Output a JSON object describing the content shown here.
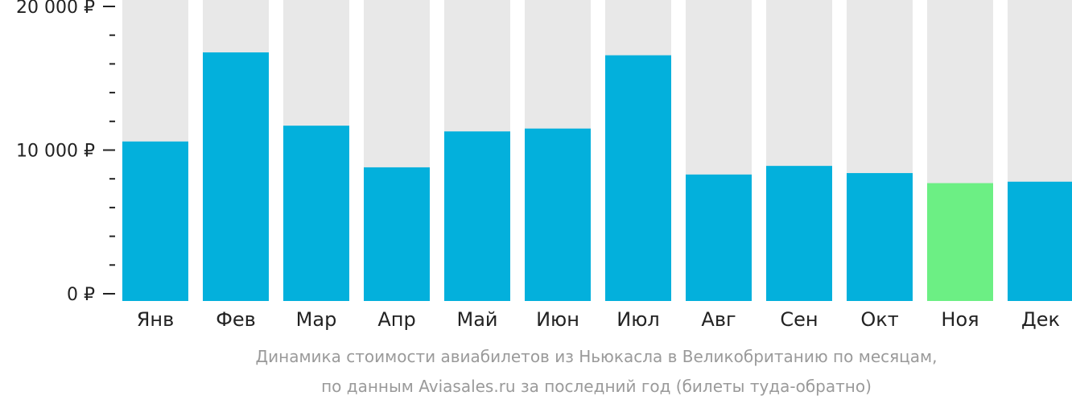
{
  "chart_data": {
    "type": "bar",
    "categories": [
      "Янв",
      "Фев",
      "Мар",
      "Апр",
      "Май",
      "Июн",
      "Июл",
      "Авг",
      "Сен",
      "Окт",
      "Ноя",
      "Дек"
    ],
    "values": [
      10600,
      16800,
      11700,
      8800,
      11300,
      11500,
      16600,
      8300,
      8900,
      8400,
      7700,
      7800
    ],
    "ylim": [
      0,
      20000
    ],
    "y_ticks": [
      {
        "value": 0,
        "label": "0 ₽"
      },
      {
        "value": 10000,
        "label": "10 000 ₽"
      },
      {
        "value": 20000,
        "label": "20 000 ₽"
      }
    ],
    "minor_tick_step": 2000,
    "highlight_category": "Ноя",
    "legend": "none",
    "grid": false
  },
  "colors": {
    "bar": "#03b0dc",
    "bar_highlight": "#6cef84",
    "bar_background": "#e8e8e8",
    "axis": "#222222",
    "caption": "#9a9a9a"
  },
  "caption": {
    "line1": "Динамика стоимости авиабилетов из Ньюкасла в Великобританию по месяцам,",
    "line2": "по данным Aviasales.ru за последний год (билеты туда-обратно)"
  }
}
